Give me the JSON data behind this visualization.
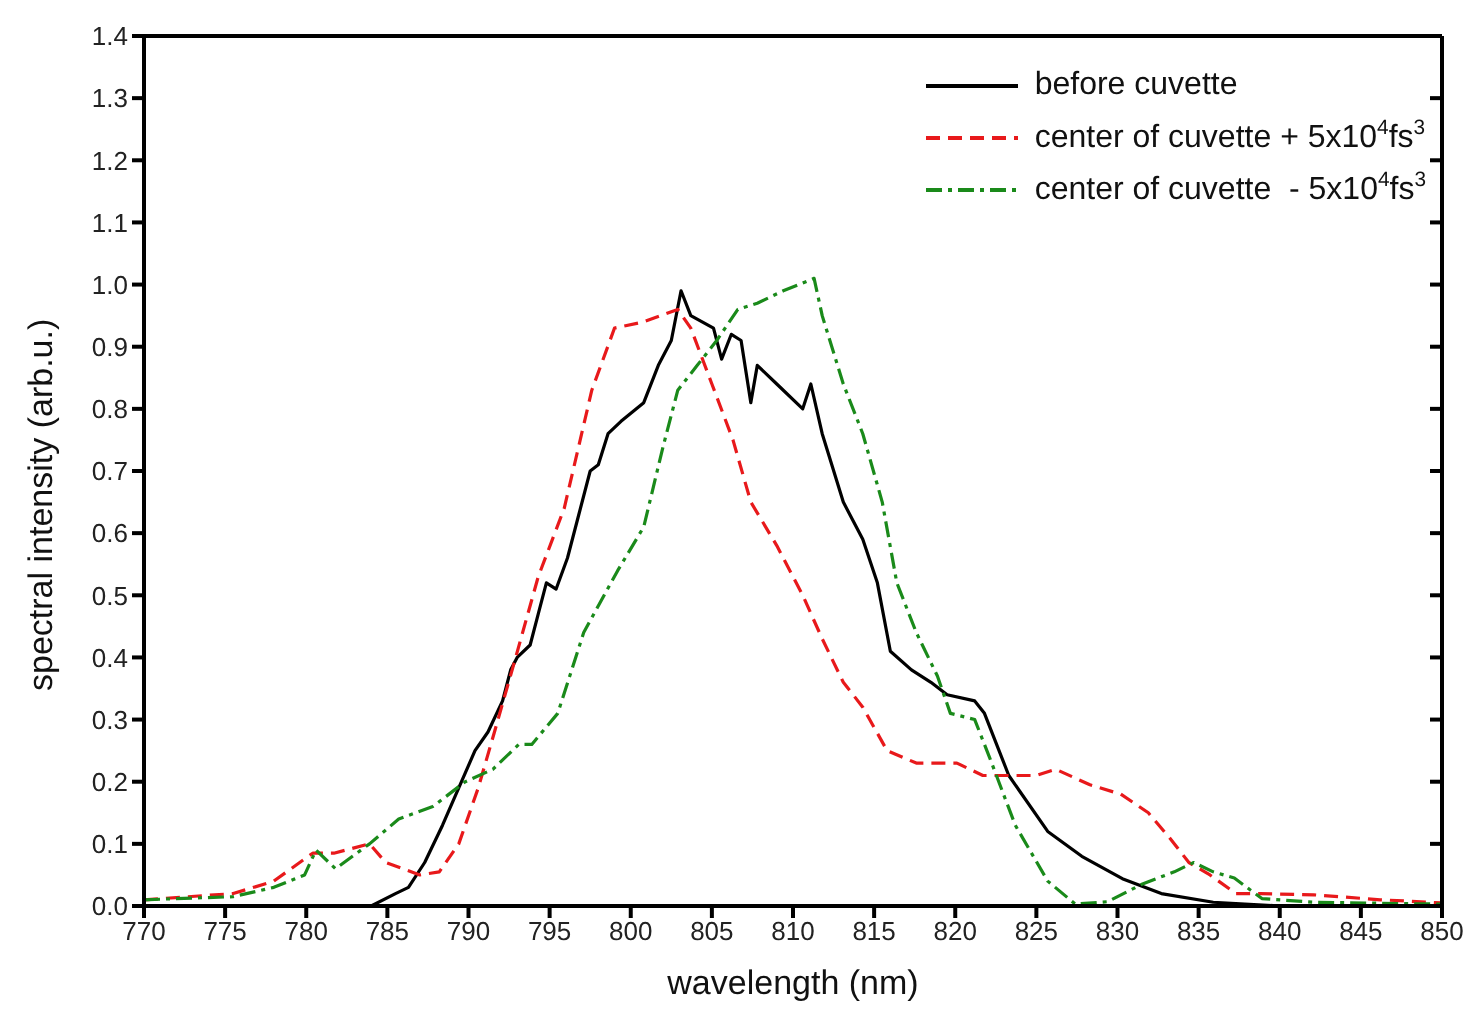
{
  "chart_data": {
    "type": "line",
    "xlabel": "wavelength (nm)",
    "ylabel": "spectral intensity (arb.u.)",
    "xlim": [
      770,
      850
    ],
    "ylim": [
      0,
      1.4
    ],
    "xticks": [
      770,
      775,
      780,
      785,
      790,
      795,
      800,
      805,
      810,
      815,
      820,
      825,
      830,
      835,
      840,
      845,
      850
    ],
    "yticks": [
      {
        "value": 0,
        "label": "0.0"
      },
      {
        "value": 0.1,
        "label": "0.1"
      },
      {
        "value": 0.2,
        "label": "0.2"
      },
      {
        "value": 0.3,
        "label": "0.3"
      },
      {
        "value": 0.4,
        "label": "0.4"
      },
      {
        "value": 0.5,
        "label": "0.5"
      },
      {
        "value": 0.6,
        "label": "0.6"
      },
      {
        "value": 0.7,
        "label": "0.7"
      },
      {
        "value": 0.8,
        "label": "0.8"
      },
      {
        "value": 0.9,
        "label": "0.9"
      },
      {
        "value": 1,
        "label": "1.0"
      },
      {
        "value": 1.1,
        "label": "1.1"
      },
      {
        "value": 1.2,
        "label": "1.2"
      },
      {
        "value": 1.3,
        "label": "1.3"
      },
      {
        "value": 1.4,
        "label": "1.4"
      }
    ],
    "legend": "top right",
    "marker": "none",
    "series": [
      {
        "name": "before cuvette",
        "color": "#000000",
        "line_style": "solid",
        "x": [
          770,
          780,
          784,
          785.5,
          786.3,
          787.3,
          788.4,
          789.4,
          790.4,
          791.2,
          792.1,
          792.6,
          793,
          793.8,
          794.3,
          794.8,
          795.4,
          796.1,
          796.8,
          797.5,
          798,
          798.6,
          799.4,
          800.8,
          801.7,
          802.5,
          803.1,
          803.7,
          805.1,
          805.6,
          806.2,
          806.8,
          807.4,
          807.8,
          809,
          810.6,
          811.1,
          811.8,
          813.1,
          814.3,
          815.2,
          816,
          817.3,
          818.5,
          819.5,
          821.2,
          821.8,
          823.3,
          825.7,
          827.8,
          830.3,
          832.7,
          835.9,
          840,
          850
        ],
        "values": [
          0,
          0,
          0,
          0.02,
          0.03,
          0.07,
          0.13,
          0.19,
          0.25,
          0.28,
          0.33,
          0.38,
          0.4,
          0.42,
          0.47,
          0.52,
          0.51,
          0.56,
          0.63,
          0.7,
          0.71,
          0.76,
          0.78,
          0.81,
          0.87,
          0.91,
          0.99,
          0.95,
          0.93,
          0.88,
          0.92,
          0.91,
          0.81,
          0.87,
          0.84,
          0.8,
          0.84,
          0.76,
          0.65,
          0.59,
          0.52,
          0.41,
          0.38,
          0.36,
          0.34,
          0.33,
          0.31,
          0.21,
          0.12,
          0.08,
          0.044,
          0.02,
          0.006,
          0,
          0
        ]
      },
      {
        "name": "center of cuvette + 5x10$^{4}$fs$^{3}$",
        "color": "#e8191b",
        "line_style": "dashed",
        "x": [
          770,
          775.5,
          778,
          780.4,
          781.7,
          783.9,
          784.9,
          787,
          788.2,
          789.4,
          790.6,
          791.6,
          792.8,
          794.3,
          795.9,
          797.6,
          799,
          800.8,
          802.9,
          803.7,
          805,
          806.3,
          807.4,
          809,
          810.6,
          811.8,
          813.1,
          814.3,
          815.8,
          817.6,
          820.1,
          821.7,
          825,
          826.2,
          828.3,
          830.2,
          831.9,
          833.2,
          834.4,
          835.7,
          837.3,
          838.8,
          842.1,
          846.2,
          850
        ],
        "values": [
          0.01,
          0.02,
          0.04,
          0.085,
          0.085,
          0.1,
          0.07,
          0.05,
          0.055,
          0.1,
          0.19,
          0.28,
          0.39,
          0.53,
          0.64,
          0.83,
          0.93,
          0.94,
          0.96,
          0.93,
          0.84,
          0.75,
          0.65,
          0.58,
          0.5,
          0.43,
          0.36,
          0.32,
          0.25,
          0.23,
          0.23,
          0.21,
          0.21,
          0.22,
          0.195,
          0.18,
          0.15,
          0.11,
          0.07,
          0.05,
          0.02,
          0.02,
          0.018,
          0.01,
          0.005
        ]
      },
      {
        "name": "center of cuvette  - 5x10$^{4}$fs$^{3}$",
        "color": "#1a8a1a",
        "line_style": "dashdot",
        "x": [
          770,
          775.5,
          778,
          779.9,
          780.6,
          781.8,
          783.9,
          785.7,
          787.8,
          789.8,
          791.5,
          793.1,
          793.9,
          795.5,
          797.1,
          799.2,
          800.8,
          802,
          802.9,
          804.1,
          805.3,
          806.6,
          807.8,
          809.4,
          811.3,
          811.8,
          813.1,
          814.3,
          815.5,
          816.4,
          817.6,
          818.9,
          819.7,
          821.2,
          822.1,
          823.7,
          825.7,
          827.4,
          829.4,
          831.5,
          833.5,
          834.7,
          835.9,
          837.2,
          838.9,
          842.1,
          850
        ],
        "values": [
          0.01,
          0.015,
          0.03,
          0.05,
          0.09,
          0.06,
          0.1,
          0.14,
          0.16,
          0.2,
          0.22,
          0.26,
          0.26,
          0.31,
          0.44,
          0.54,
          0.61,
          0.74,
          0.83,
          0.87,
          0.91,
          0.96,
          0.97,
          0.99,
          1.01,
          0.95,
          0.84,
          0.76,
          0.65,
          0.52,
          0.44,
          0.37,
          0.31,
          0.3,
          0.24,
          0.13,
          0.04,
          0.003,
          0.007,
          0.035,
          0.055,
          0.07,
          0.055,
          0.045,
          0.012,
          0.006,
          0.003
        ]
      }
    ]
  }
}
